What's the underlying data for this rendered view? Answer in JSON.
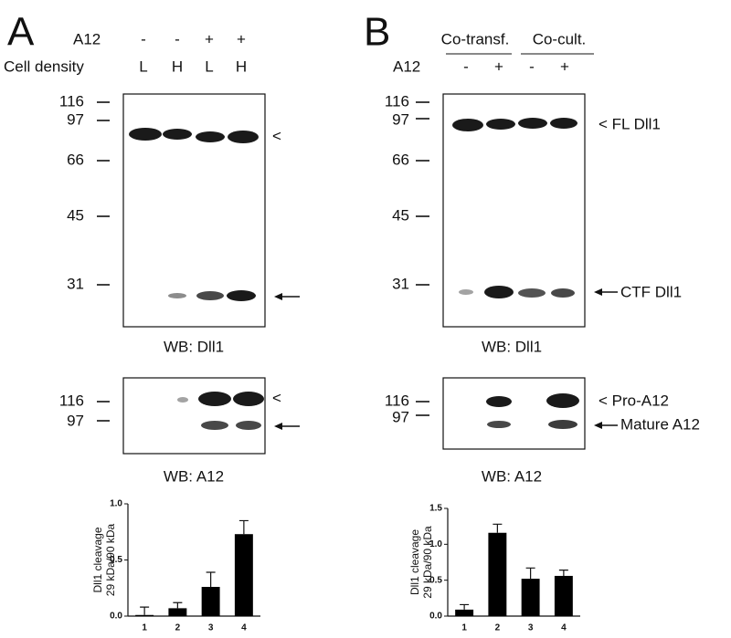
{
  "panel_a": {
    "letter": "A",
    "row_labels": [
      "A12",
      "Cell density"
    ],
    "a12": [
      "-",
      "-",
      "+",
      "+"
    ],
    "density": [
      "L",
      "H",
      "L",
      "H"
    ],
    "blot1": {
      "markers": [
        "116",
        "97",
        "66",
        "45",
        "31"
      ],
      "pointer": "<",
      "caption": "WB: Dll1"
    },
    "blot2": {
      "markers": [
        "116",
        "97"
      ],
      "pointer": "<",
      "caption": "WB: A12"
    }
  },
  "panel_b": {
    "letter": "B",
    "groups": [
      "Co-transf.",
      "Co-cult."
    ],
    "row_label": "A12",
    "a12": [
      "-",
      "+",
      "-",
      "+"
    ],
    "blot1": {
      "markers": [
        "116",
        "97",
        "66",
        "45",
        "31"
      ],
      "labels": [
        "< FL Dll1",
        "CTF Dll1"
      ],
      "caption": "WB: Dll1"
    },
    "blot2": {
      "markers": [
        "116",
        "97"
      ],
      "labels": [
        "< Pro-A12",
        "Mature A12"
      ],
      "caption": "WB: A12"
    }
  },
  "chart_data": [
    {
      "type": "bar",
      "ylabel": [
        "Dll1 cleavage",
        "29 kDa/90 kDa"
      ],
      "categories": [
        "1",
        "2",
        "3",
        "4"
      ],
      "values": [
        0.01,
        0.07,
        0.26,
        0.73
      ],
      "errors": [
        0.07,
        0.05,
        0.13,
        0.12
      ],
      "color": "#000000",
      "ylim": [
        0,
        1
      ],
      "yticks": [
        {
          "value": 0,
          "label": "0.0"
        },
        {
          "value": 0.5,
          "label": "0.5"
        },
        {
          "value": 1,
          "label": "1.0"
        }
      ]
    },
    {
      "type": "bar",
      "ylabel": [
        "Dll1 cleavage",
        "29 kDa/90 kDa"
      ],
      "categories": [
        "1",
        "2",
        "3",
        "4"
      ],
      "values": [
        0.09,
        1.16,
        0.52,
        0.56
      ],
      "errors": [
        0.07,
        0.12,
        0.15,
        0.08
      ],
      "color": "#000000",
      "ylim": [
        0,
        1.5
      ],
      "yticks": [
        {
          "value": 0,
          "label": "0.0"
        },
        {
          "value": 0.5,
          "label": "0.5"
        },
        {
          "value": 1,
          "label": "1.0"
        },
        {
          "value": 1.5,
          "label": "1.5"
        }
      ]
    }
  ]
}
